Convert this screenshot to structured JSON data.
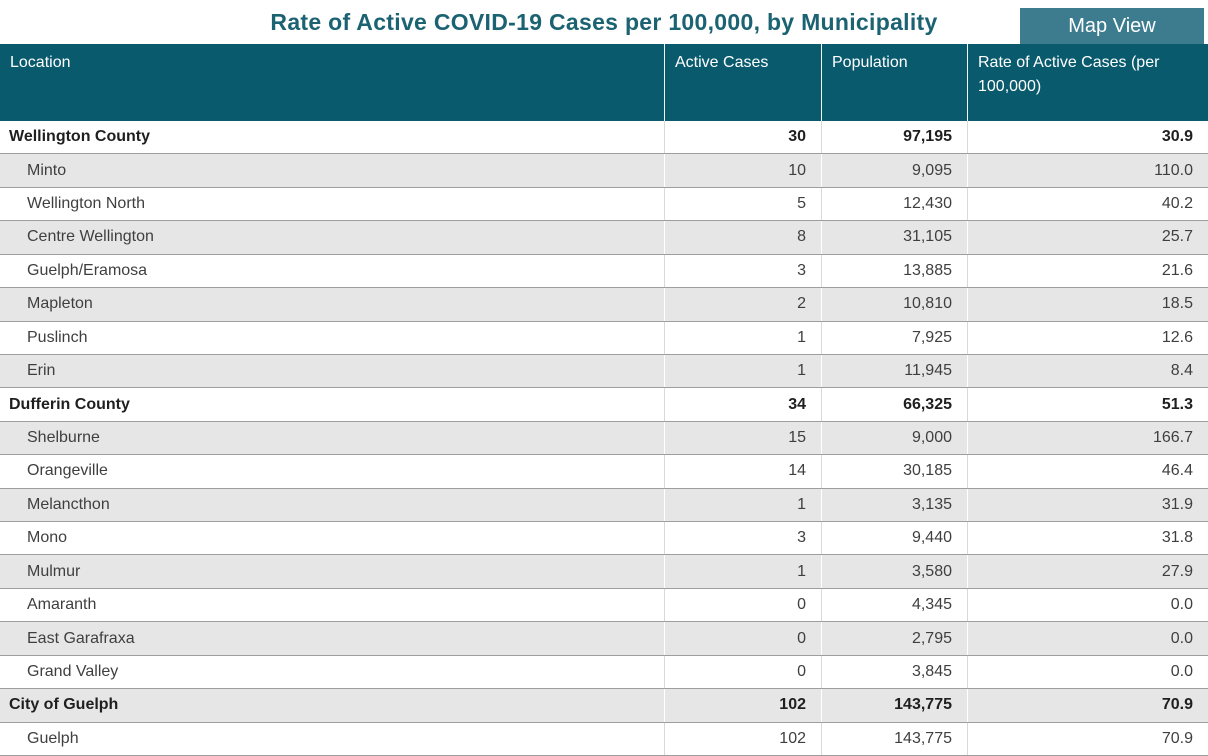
{
  "title": "Rate of Active COVID-19 Cases per 100,000, by Municipality",
  "map_view_button": "Map View",
  "colors": {
    "header_bg": "#0a5a6e",
    "button_bg": "#3d7c8f",
    "title_color": "#1b6272",
    "alt_row_bg": "#e6e6e6"
  },
  "table": {
    "columns": [
      "Location",
      "Active Cases",
      "Population",
      "Rate of Active Cases (per 100,000)"
    ],
    "rows": [
      {
        "location": "Wellington County",
        "active_cases": "30",
        "population": "97,195",
        "rate": "30.9",
        "level": "group"
      },
      {
        "location": "Minto",
        "active_cases": "10",
        "population": "9,095",
        "rate": "110.0",
        "level": "item"
      },
      {
        "location": "Wellington North",
        "active_cases": "5",
        "population": "12,430",
        "rate": "40.2",
        "level": "item"
      },
      {
        "location": "Centre Wellington",
        "active_cases": "8",
        "population": "31,105",
        "rate": "25.7",
        "level": "item"
      },
      {
        "location": "Guelph/Eramosa",
        "active_cases": "3",
        "population": "13,885",
        "rate": "21.6",
        "level": "item"
      },
      {
        "location": "Mapleton",
        "active_cases": "2",
        "population": "10,810",
        "rate": "18.5",
        "level": "item"
      },
      {
        "location": "Puslinch",
        "active_cases": "1",
        "population": "7,925",
        "rate": "12.6",
        "level": "item"
      },
      {
        "location": "Erin",
        "active_cases": "1",
        "population": "11,945",
        "rate": "8.4",
        "level": "item"
      },
      {
        "location": "Dufferin County",
        "active_cases": "34",
        "population": "66,325",
        "rate": "51.3",
        "level": "group"
      },
      {
        "location": "Shelburne",
        "active_cases": "15",
        "population": "9,000",
        "rate": "166.7",
        "level": "item"
      },
      {
        "location": "Orangeville",
        "active_cases": "14",
        "population": "30,185",
        "rate": "46.4",
        "level": "item"
      },
      {
        "location": "Melancthon",
        "active_cases": "1",
        "population": "3,135",
        "rate": "31.9",
        "level": "item"
      },
      {
        "location": "Mono",
        "active_cases": "3",
        "population": "9,440",
        "rate": "31.8",
        "level": "item"
      },
      {
        "location": "Mulmur",
        "active_cases": "1",
        "population": "3,580",
        "rate": "27.9",
        "level": "item"
      },
      {
        "location": "Amaranth",
        "active_cases": "0",
        "population": "4,345",
        "rate": "0.0",
        "level": "item"
      },
      {
        "location": "East Garafraxa",
        "active_cases": "0",
        "population": "2,795",
        "rate": "0.0",
        "level": "item"
      },
      {
        "location": "Grand Valley",
        "active_cases": "0",
        "population": "3,845",
        "rate": "0.0",
        "level": "item"
      },
      {
        "location": "City of Guelph",
        "active_cases": "102",
        "population": "143,775",
        "rate": "70.9",
        "level": "group"
      },
      {
        "location": "Guelph",
        "active_cases": "102",
        "population": "143,775",
        "rate": "70.9",
        "level": "item"
      }
    ]
  }
}
